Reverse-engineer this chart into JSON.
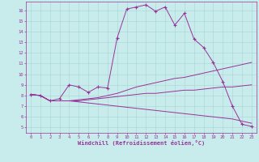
{
  "title": "",
  "xlabel": "Windchill (Refroidissement éolien,°C)",
  "background_color": "#c8ecec",
  "grid_color": "#a8d4d4",
  "line_color": "#993399",
  "xlim": [
    -0.5,
    23.5
  ],
  "ylim": [
    4.5,
    16.8
  ],
  "yticks": [
    5,
    6,
    7,
    8,
    9,
    10,
    11,
    12,
    13,
    14,
    15,
    16
  ],
  "xticks": [
    0,
    1,
    2,
    3,
    4,
    5,
    6,
    7,
    8,
    9,
    10,
    11,
    12,
    13,
    14,
    15,
    16,
    17,
    18,
    19,
    20,
    21,
    22,
    23
  ],
  "series": [
    {
      "x": [
        0,
        1,
        2,
        3,
        4,
        5,
        6,
        7,
        8,
        9,
        10,
        11,
        12,
        13,
        14,
        15,
        16,
        17,
        18,
        19,
        20,
        21,
        22,
        23
      ],
      "y": [
        8.1,
        8.0,
        7.5,
        7.7,
        9.0,
        8.8,
        8.3,
        8.8,
        8.7,
        13.4,
        16.1,
        16.3,
        16.5,
        15.9,
        16.3,
        14.6,
        15.7,
        13.3,
        12.5,
        11.1,
        9.3,
        7.0,
        5.3,
        5.1
      ],
      "marker": "+",
      "linestyle": "-"
    },
    {
      "x": [
        0,
        1,
        2,
        3,
        4,
        5,
        6,
        7,
        8,
        9,
        10,
        11,
        12,
        13,
        14,
        15,
        16,
        17,
        18,
        19,
        20,
        21,
        22,
        23
      ],
      "y": [
        8.1,
        8.0,
        7.5,
        7.5,
        7.5,
        7.6,
        7.7,
        7.8,
        8.0,
        8.2,
        8.5,
        8.8,
        9.0,
        9.2,
        9.4,
        9.6,
        9.7,
        9.9,
        10.1,
        10.3,
        10.5,
        10.7,
        10.9,
        11.1
      ],
      "marker": null,
      "linestyle": "-"
    },
    {
      "x": [
        0,
        1,
        2,
        3,
        4,
        5,
        6,
        7,
        8,
        9,
        10,
        11,
        12,
        13,
        14,
        15,
        16,
        17,
        18,
        19,
        20,
        21,
        22,
        23
      ],
      "y": [
        8.1,
        8.0,
        7.5,
        7.5,
        7.5,
        7.5,
        7.6,
        7.7,
        7.8,
        7.9,
        8.0,
        8.1,
        8.2,
        8.2,
        8.3,
        8.4,
        8.5,
        8.5,
        8.6,
        8.7,
        8.8,
        8.8,
        8.9,
        9.0
      ],
      "marker": null,
      "linestyle": "-"
    },
    {
      "x": [
        0,
        1,
        2,
        3,
        4,
        5,
        6,
        7,
        8,
        9,
        10,
        11,
        12,
        13,
        14,
        15,
        16,
        17,
        18,
        19,
        20,
        21,
        22,
        23
      ],
      "y": [
        8.1,
        8.0,
        7.5,
        7.5,
        7.5,
        7.4,
        7.3,
        7.2,
        7.1,
        7.0,
        6.9,
        6.8,
        6.7,
        6.6,
        6.5,
        6.4,
        6.3,
        6.2,
        6.1,
        6.0,
        5.9,
        5.8,
        5.6,
        5.4
      ],
      "marker": null,
      "linestyle": "-"
    }
  ]
}
